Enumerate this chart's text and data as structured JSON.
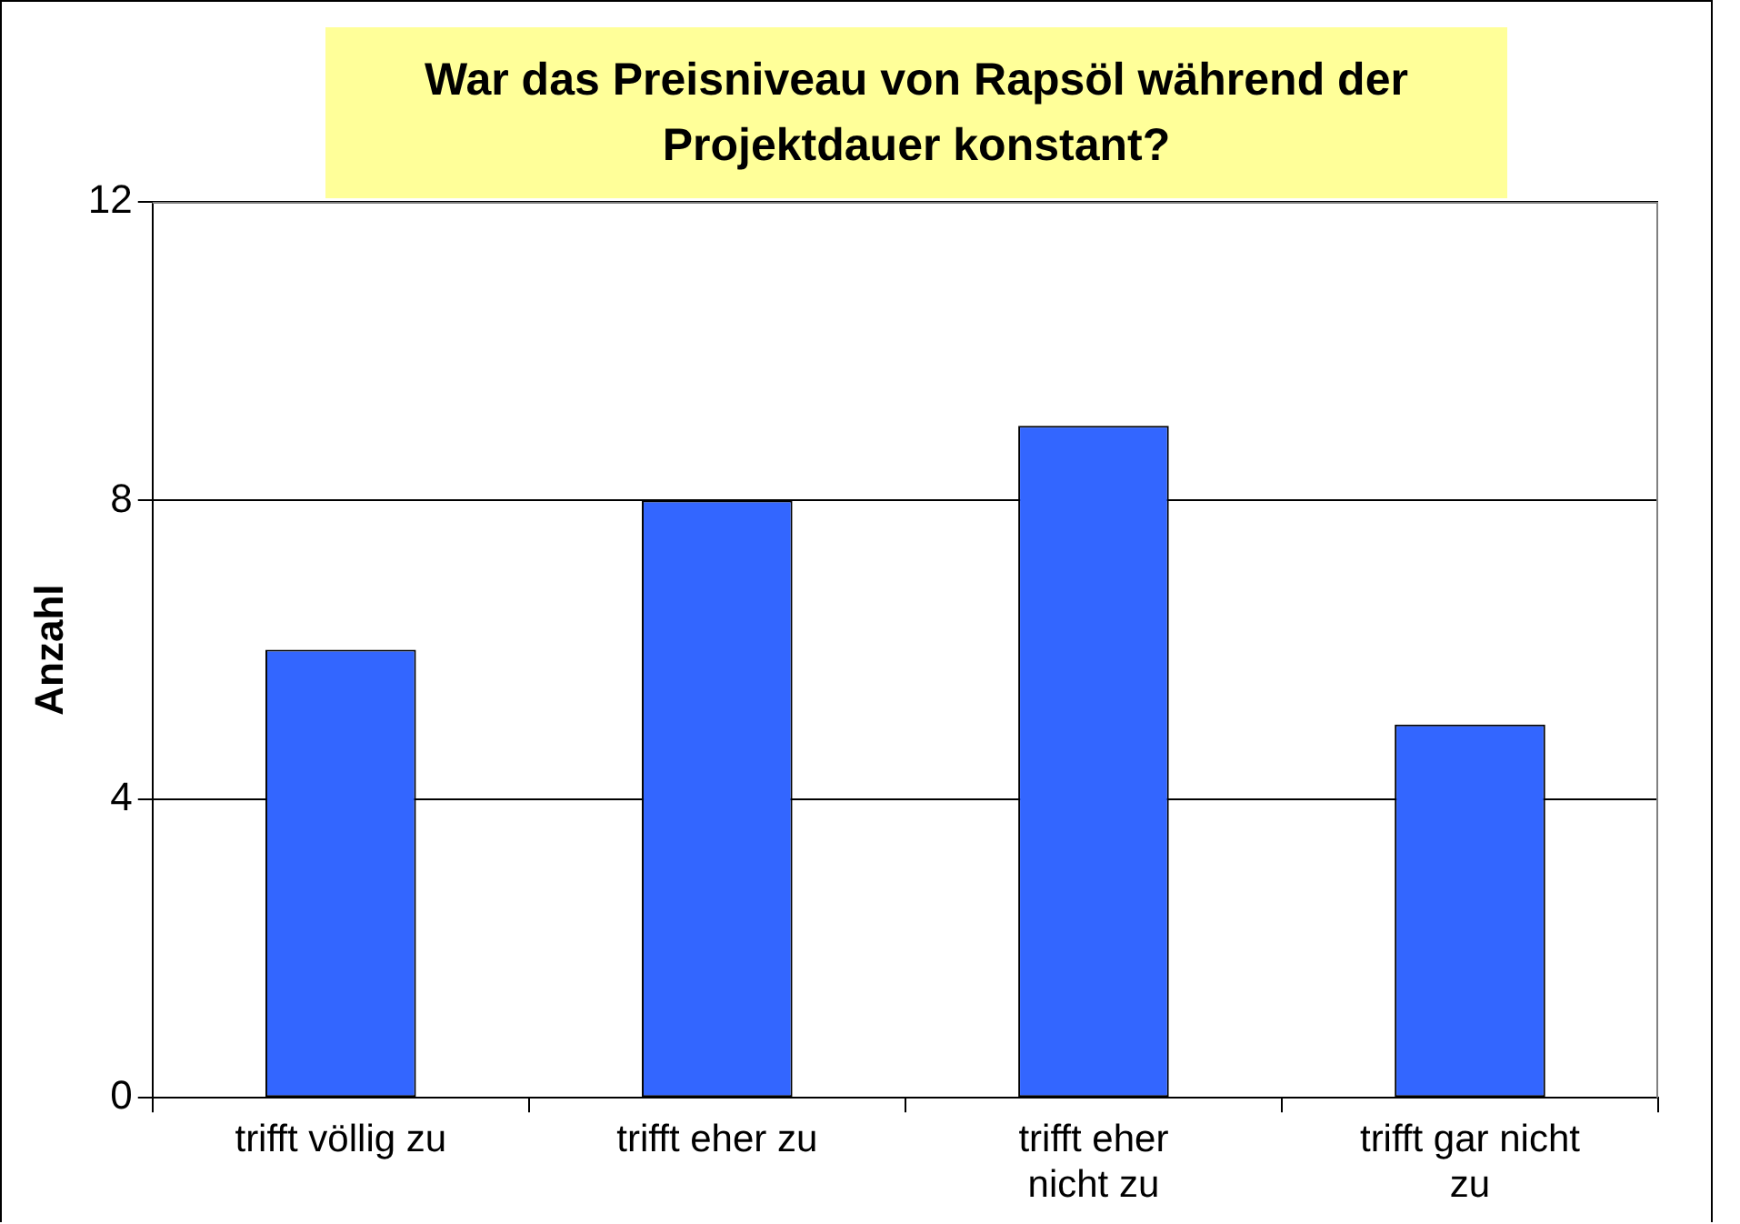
{
  "chart_data": {
    "type": "bar",
    "title": "War das Preisniveau von Rapsöl während der Projektdauer konstant?",
    "ylabel": "Anzahl",
    "categories": [
      "trifft völlig zu",
      "trifft eher zu",
      "trifft eher nicht zu",
      "trifft gar nicht zu"
    ],
    "values": [
      6,
      8,
      9,
      5
    ],
    "color": "#3366ff",
    "ylim": [
      0,
      12
    ],
    "yticks": [
      0,
      4,
      8,
      12
    ],
    "grid": "y",
    "legend": false
  }
}
